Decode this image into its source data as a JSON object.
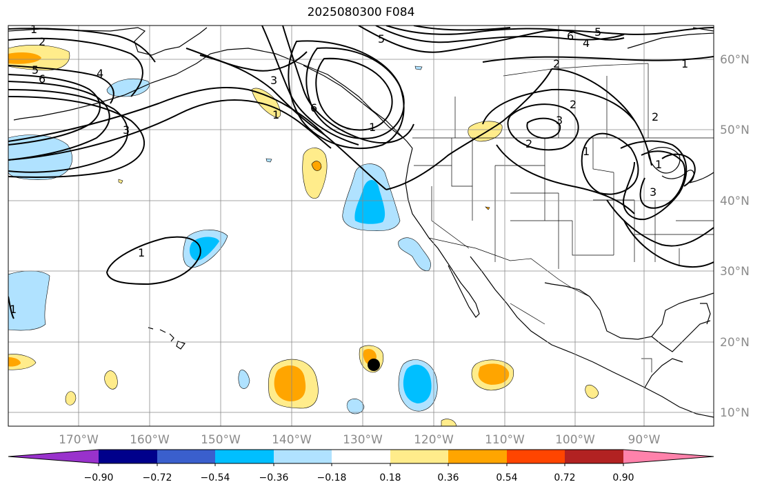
{
  "title": "2025080300 F084",
  "map": {
    "lon_labels": [
      "170°W",
      "160°W",
      "150°W",
      "140°W",
      "130°W",
      "120°W",
      "110°W",
      "100°W",
      "90°W"
    ],
    "lat_labels": [
      "60°N",
      "50°N",
      "40°N",
      "30°N",
      "20°N",
      "10°N"
    ],
    "contour_labels": [
      "1",
      "2",
      "5",
      "6",
      "4",
      "3",
      "1",
      "5",
      "3",
      "6",
      "1",
      "6",
      "5",
      "4",
      "2",
      "1",
      "2",
      "3",
      "2",
      "1",
      "2",
      "3",
      "1",
      "1",
      "1"
    ]
  },
  "colorbar": {
    "ticks": [
      "−0.90",
      "−0.72",
      "−0.54",
      "−0.36",
      "−0.18",
      "0.18",
      "0.36",
      "0.54",
      "0.72",
      "0.90"
    ],
    "colors": [
      "#9932cc",
      "#00008b",
      "#3a5fcd",
      "#00bfff",
      "#b0e2ff",
      "#ffffff",
      "#ffec8b",
      "#ffa500",
      "#ff4500",
      "#b22222",
      "#ff82ab"
    ]
  },
  "storm_marker": "hurricane-center"
}
